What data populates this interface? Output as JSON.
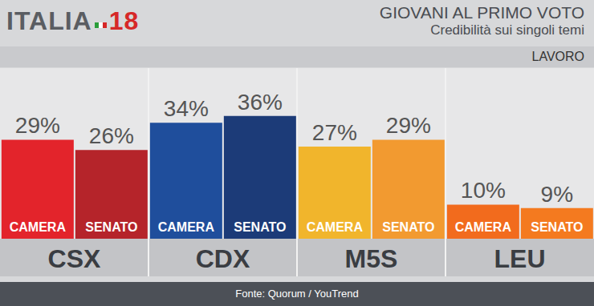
{
  "header": {
    "logo": [
      "ITALIA",
      "18"
    ],
    "topic": "LAVORO"
  },
  "source": "Fonte: Quorum / YouTrend",
  "chart_data": {
    "type": "bar",
    "title": "GIOVANI AL PRIMO VOTO",
    "subtitle": "Credibilità sui singoli temi",
    "categories": [
      "CSX",
      "CDX",
      "M5S",
      "LEU"
    ],
    "series": [
      {
        "name": "CAMERA",
        "values": [
          29,
          34,
          27,
          10
        ],
        "value_labels": [
          "29%",
          "34%",
          "27%",
          "10%"
        ],
        "colors": [
          "#e3242b",
          "#1f4e9c",
          "#f1b52c",
          "#f26b1d"
        ]
      },
      {
        "name": "SENATO",
        "values": [
          26,
          36,
          29,
          9
        ],
        "value_labels": [
          "26%",
          "36%",
          "29%",
          "9%"
        ],
        "colors": [
          "#b5242a",
          "#1c3b78",
          "#f29a30",
          "#f47a1f"
        ]
      }
    ],
    "ylim": [
      0,
      50
    ],
    "data_labels": true,
    "tick_labels": "x",
    "grid": false,
    "stacked": false
  }
}
